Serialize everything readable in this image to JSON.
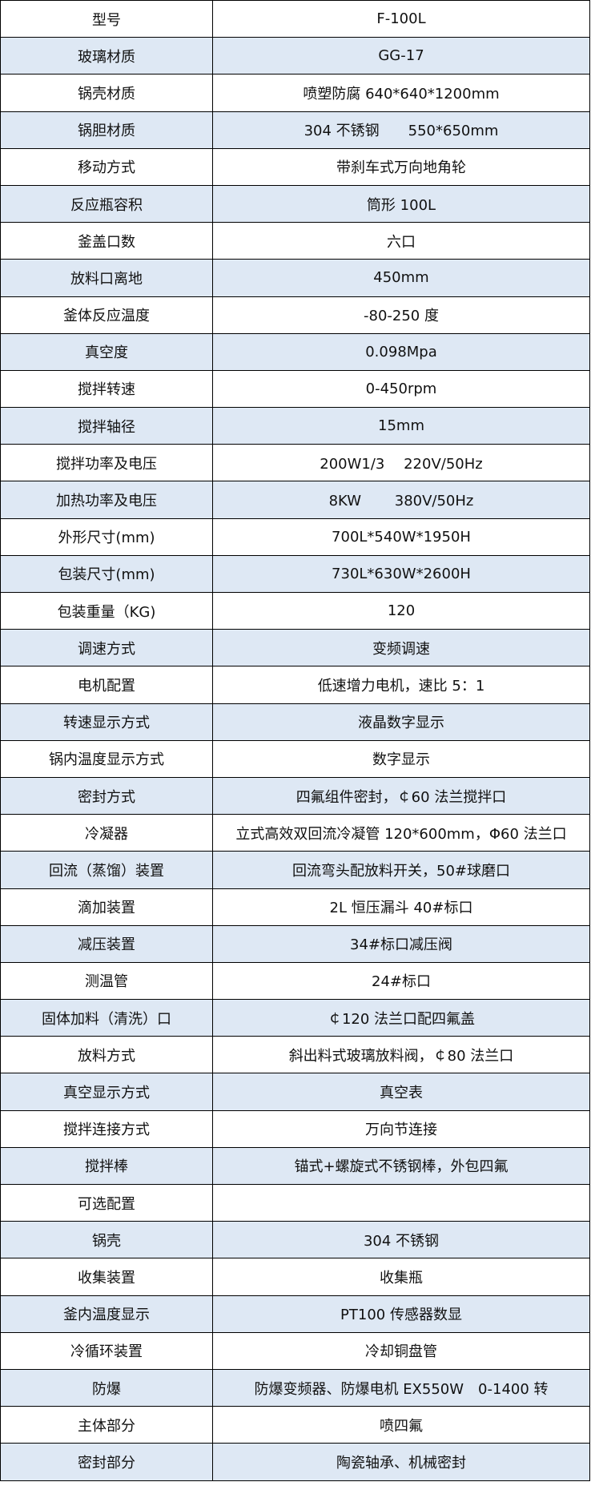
{
  "colors": {
    "stripe": "#DEE8F4",
    "border": "#000000"
  },
  "rows": [
    {
      "label": "型号",
      "value": "F-100L"
    },
    {
      "label": "玻璃材质",
      "value": "GG-17"
    },
    {
      "label": "锅壳材质",
      "value": "喷塑防腐 640*640*1200mm"
    },
    {
      "label": "锅胆材质",
      "value": "304 不锈钢　　550*650mm"
    },
    {
      "label": "移动方式",
      "value": "带刹车式万向地角轮"
    },
    {
      "label": "反应瓶容积",
      "value": "筒形 100L"
    },
    {
      "label": "釜盖口数",
      "value": "六口"
    },
    {
      "label": "放料口离地",
      "value": "450mm"
    },
    {
      "label": "釜体反应温度",
      "value": "-80-250 度"
    },
    {
      "label": "真空度",
      "value": "0.098Mpa"
    },
    {
      "label": "搅拌转速",
      "value": "0-450rpm"
    },
    {
      "label": "搅拌轴径",
      "value": "15mm"
    },
    {
      "label": "搅拌功率及电压",
      "value": "200W1/3　 220V/50Hz"
    },
    {
      "label": "加热功率及电压",
      "value": "8KW　　 380V/50Hz"
    },
    {
      "label": "外形尺寸(mm)",
      "value": "700L*540W*1950H"
    },
    {
      "label": "包装尺寸(mm)",
      "value": "730L*630W*2600H"
    },
    {
      "label": "包装重量（KG)",
      "value": "120"
    },
    {
      "label": "调速方式",
      "value": "变频调速"
    },
    {
      "label": "电机配置",
      "value": "低速增力电机，速比 5：1"
    },
    {
      "label": "转速显示方式",
      "value": "液晶数字显示"
    },
    {
      "label": "锅内温度显示方式",
      "value": "数字显示"
    },
    {
      "label": "密封方式",
      "value": "四氟组件密封，￠60 法兰搅拌口"
    },
    {
      "label": "冷凝器",
      "value": "立式高效双回流冷凝管 120*600mm，Φ60 法兰口"
    },
    {
      "label": "回流（蒸馏）装置",
      "value": "回流弯头配放料开关，50#球磨口"
    },
    {
      "label": "滴加装置",
      "value": "2L 恒压漏斗 40#标口"
    },
    {
      "label": "减压装置",
      "value": "34#标口减压阀"
    },
    {
      "label": "测温管",
      "value": "24#标口"
    },
    {
      "label": "固体加料（清洗）口",
      "value": "￠120 法兰口配四氟盖"
    },
    {
      "label": "放料方式",
      "value": "斜出料式玻璃放料阀，￠80 法兰口"
    },
    {
      "label": "真空显示方式",
      "value": "真空表"
    },
    {
      "label": "搅拌连接方式",
      "value": "万向节连接"
    },
    {
      "label": "搅拌棒",
      "value": "锚式+螺旋式不锈钢棒，外包四氟"
    },
    {
      "label": "可选配置",
      "value": ""
    },
    {
      "label": "锅壳",
      "value": "304 不锈钢"
    },
    {
      "label": "收集装置",
      "value": "收集瓶"
    },
    {
      "label": "釜内温度显示",
      "value": "PT100 传感器数显"
    },
    {
      "label": "冷循环装置",
      "value": "冷却铜盘管"
    },
    {
      "label": "防爆",
      "value": "防爆变频器、防爆电机 EX550W　0-1400 转"
    },
    {
      "label": "主体部分",
      "value": "喷四氟"
    },
    {
      "label": "密封部分",
      "value": "陶瓷轴承、机械密封"
    }
  ]
}
